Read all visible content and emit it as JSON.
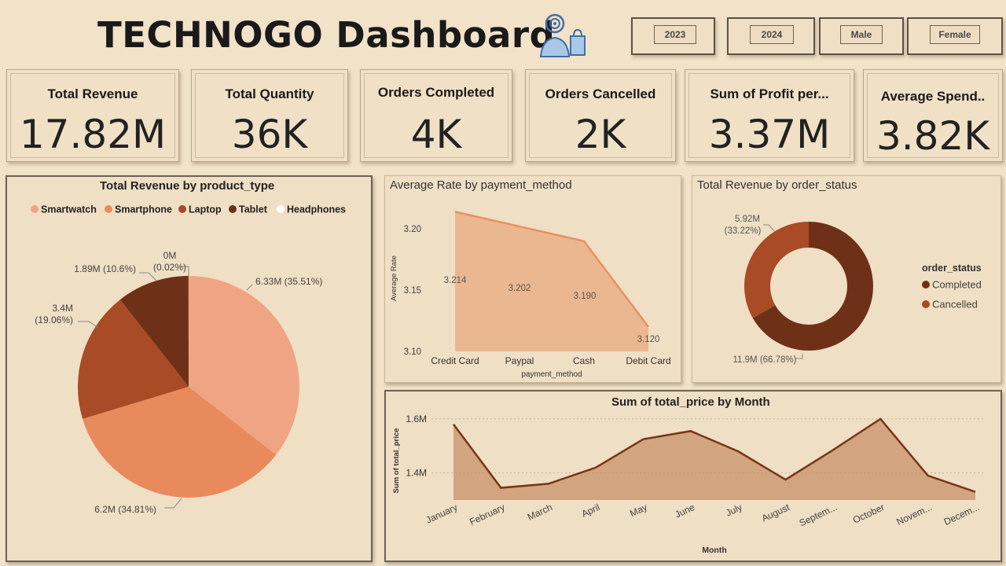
{
  "header": {
    "title": "TECHNOGO Dashboard"
  },
  "slicers": [
    {
      "label": "2023"
    },
    {
      "label": "2024"
    },
    {
      "label": "Male"
    },
    {
      "label": "Female"
    }
  ],
  "kpis": [
    {
      "label": "Total Revenue",
      "value": "17.82M"
    },
    {
      "label": "Total Quantity",
      "value": "36K"
    },
    {
      "label": "Orders Completed",
      "value": "4K"
    },
    {
      "label": "Orders Cancelled",
      "value": "2K"
    },
    {
      "label": "Sum of Profit per...",
      "value": "3.37M"
    },
    {
      "label": "Average Spend..",
      "value": "3.82K"
    }
  ],
  "chart_data": [
    {
      "type": "pie",
      "title": "Total Revenue by product_type",
      "legend_position": "top",
      "categories": [
        "Smartwatch",
        "Smartphone",
        "Laptop",
        "Tablet",
        "Headphones"
      ],
      "values": [
        6.33,
        6.2,
        3.4,
        1.89,
        0.0
      ],
      "percentages": [
        35.51,
        34.81,
        19.06,
        10.6,
        0.02
      ],
      "data_labels": [
        "6.33M (35.51%)",
        "6.2M (34.81%)",
        "3.4M (19.06%)",
        "1.89M (10.6%)",
        "0M (0.02%)"
      ],
      "colors": [
        "#efa584",
        "#e88a5c",
        "#a84b26",
        "#6e3118",
        "#ffffff"
      ]
    },
    {
      "type": "area",
      "title": "Average Rate by payment_method",
      "xlabel": "payment_method",
      "ylabel": "Average Rate",
      "categories": [
        "Credit Card",
        "Paypal",
        "Cash",
        "Debit Card"
      ],
      "values": [
        3.214,
        3.202,
        3.19,
        3.12
      ],
      "data_labels": [
        "3.214",
        "3.202",
        "3.190",
        "3.120"
      ],
      "yticks": [
        "3.10",
        "3.15",
        "3.20"
      ],
      "ylim": [
        3.1,
        3.22
      ],
      "color": "#e8905e"
    },
    {
      "type": "donut",
      "title": "Total Revenue by order_status",
      "legend_title": "order_status",
      "legend_position": "right",
      "categories": [
        "Completed",
        "Cancelled"
      ],
      "values": [
        11.9,
        5.92
      ],
      "percentages": [
        66.78,
        33.22
      ],
      "data_labels": [
        "11.9M (66.78%)",
        "5.92M (33.22%)"
      ],
      "colors": [
        "#6e3118",
        "#a84b26"
      ]
    },
    {
      "type": "area",
      "title": "Sum of total_price by Month",
      "xlabel": "Month",
      "ylabel": "Sum of total_price",
      "categories": [
        "January",
        "February",
        "March",
        "April",
        "May",
        "June",
        "July",
        "August",
        "Septem...",
        "October",
        "Novem...",
        "Decem..."
      ],
      "values": [
        1.58,
        1.345,
        1.36,
        1.42,
        1.525,
        1.555,
        1.48,
        1.375,
        1.485,
        1.6,
        1.39,
        1.33
      ],
      "yticks": [
        "1.4M",
        "1.6M"
      ],
      "ylim": [
        1.3,
        1.62
      ],
      "color": "#7a3418"
    }
  ]
}
